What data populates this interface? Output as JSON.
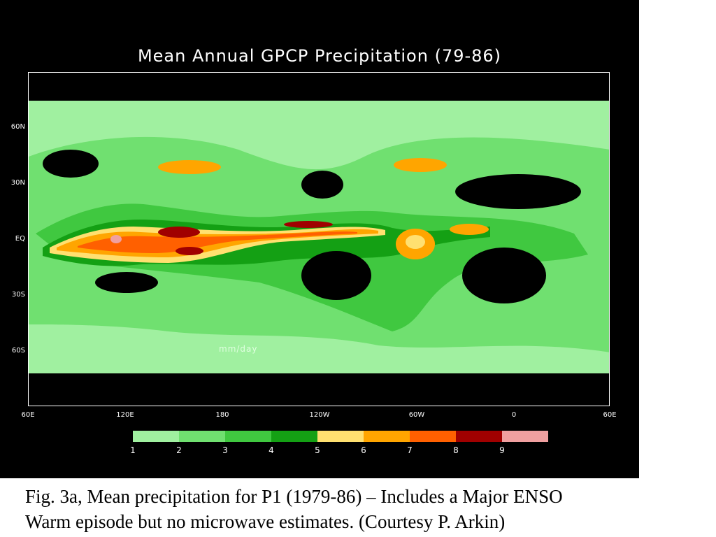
{
  "figure": {
    "title": "Mean Annual GPCP Precipitation (79-86)",
    "unit_label": "mm/day",
    "lat_labels": [
      "60N",
      "30N",
      "EQ",
      "30S",
      "60S"
    ],
    "lon_labels": [
      "60E",
      "120E",
      "180",
      "120W",
      "60W",
      "0",
      "60E"
    ],
    "legend_values": [
      "1",
      "2",
      "3",
      "4",
      "5",
      "6",
      "7",
      "8",
      "9"
    ],
    "legend_colors": [
      "#a0f0a0",
      "#70e070",
      "#40c840",
      "#14a014",
      "#ffe070",
      "#ffa500",
      "#ff6000",
      "#a00000",
      "#f0a0a0"
    ]
  },
  "caption": {
    "line1": "Fig. 3a, Mean precipitation for P1 (1979-86) – Includes a Major ENSO",
    "line2": "Warm episode but no microwave estimates.   (Courtesy P. Arkin)"
  },
  "colors": {
    "background": "#000000",
    "level1": "#a0f0a0",
    "level2": "#70e070",
    "level3": "#40c840",
    "level4": "#14a014",
    "level5": "#ffe070",
    "level6": "#ffa500",
    "level7": "#ff6000",
    "level8": "#a00000",
    "level9": "#f0a0a0"
  }
}
